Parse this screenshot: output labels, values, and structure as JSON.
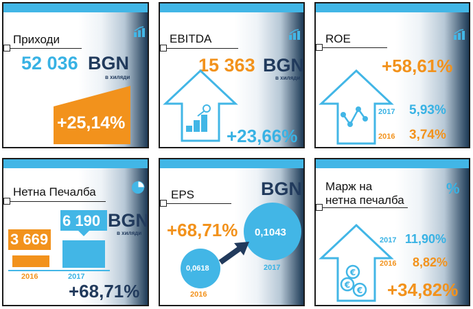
{
  "colors": {
    "blue": "#38b2e4",
    "orange": "#f2921c",
    "navy": "#213a5c",
    "topbar": "#42b6e6"
  },
  "cards": {
    "revenue": {
      "title": "Приходи",
      "value": "52 036",
      "currency": "BGN",
      "unit": "в хиляди",
      "change": "+25,14%",
      "icon": "bar-chart-arrow-icon"
    },
    "ebitda": {
      "title": "EBITDA",
      "value": "15 363",
      "currency": "BGN",
      "unit": "в хиляди",
      "change": "+23,66%",
      "icon": "bar-chart-arrow-icon"
    },
    "roe": {
      "title": "ROE",
      "change": "+58,61%",
      "year_2017": "2017",
      "value_2017": "5,93%",
      "year_2016": "2016",
      "value_2016": "3,74%",
      "icon": "bar-chart-arrow-icon"
    },
    "net_profit": {
      "title": "Нетна Печалба",
      "value_2016": "3 669",
      "value_2017": "6 190",
      "currency": "BGN",
      "unit": "в хиляди",
      "year_2016": "2016",
      "year_2017": "2017",
      "change": "+68,71%",
      "icon": "pie-chart-icon"
    },
    "eps": {
      "title": "EPS",
      "currency": "BGN",
      "change": "+68,71%",
      "value_2016": "0,0618",
      "value_2017": "0,1043",
      "year_2016": "2016",
      "year_2017": "2017"
    },
    "net_margin": {
      "title_line1": "Марж на",
      "title_line2": "нетна печалба",
      "percent_sign": "%",
      "year_2017": "2017",
      "value_2017": "11,90%",
      "year_2016": "2016",
      "value_2016": "8,82%",
      "change": "+34,82%"
    }
  }
}
